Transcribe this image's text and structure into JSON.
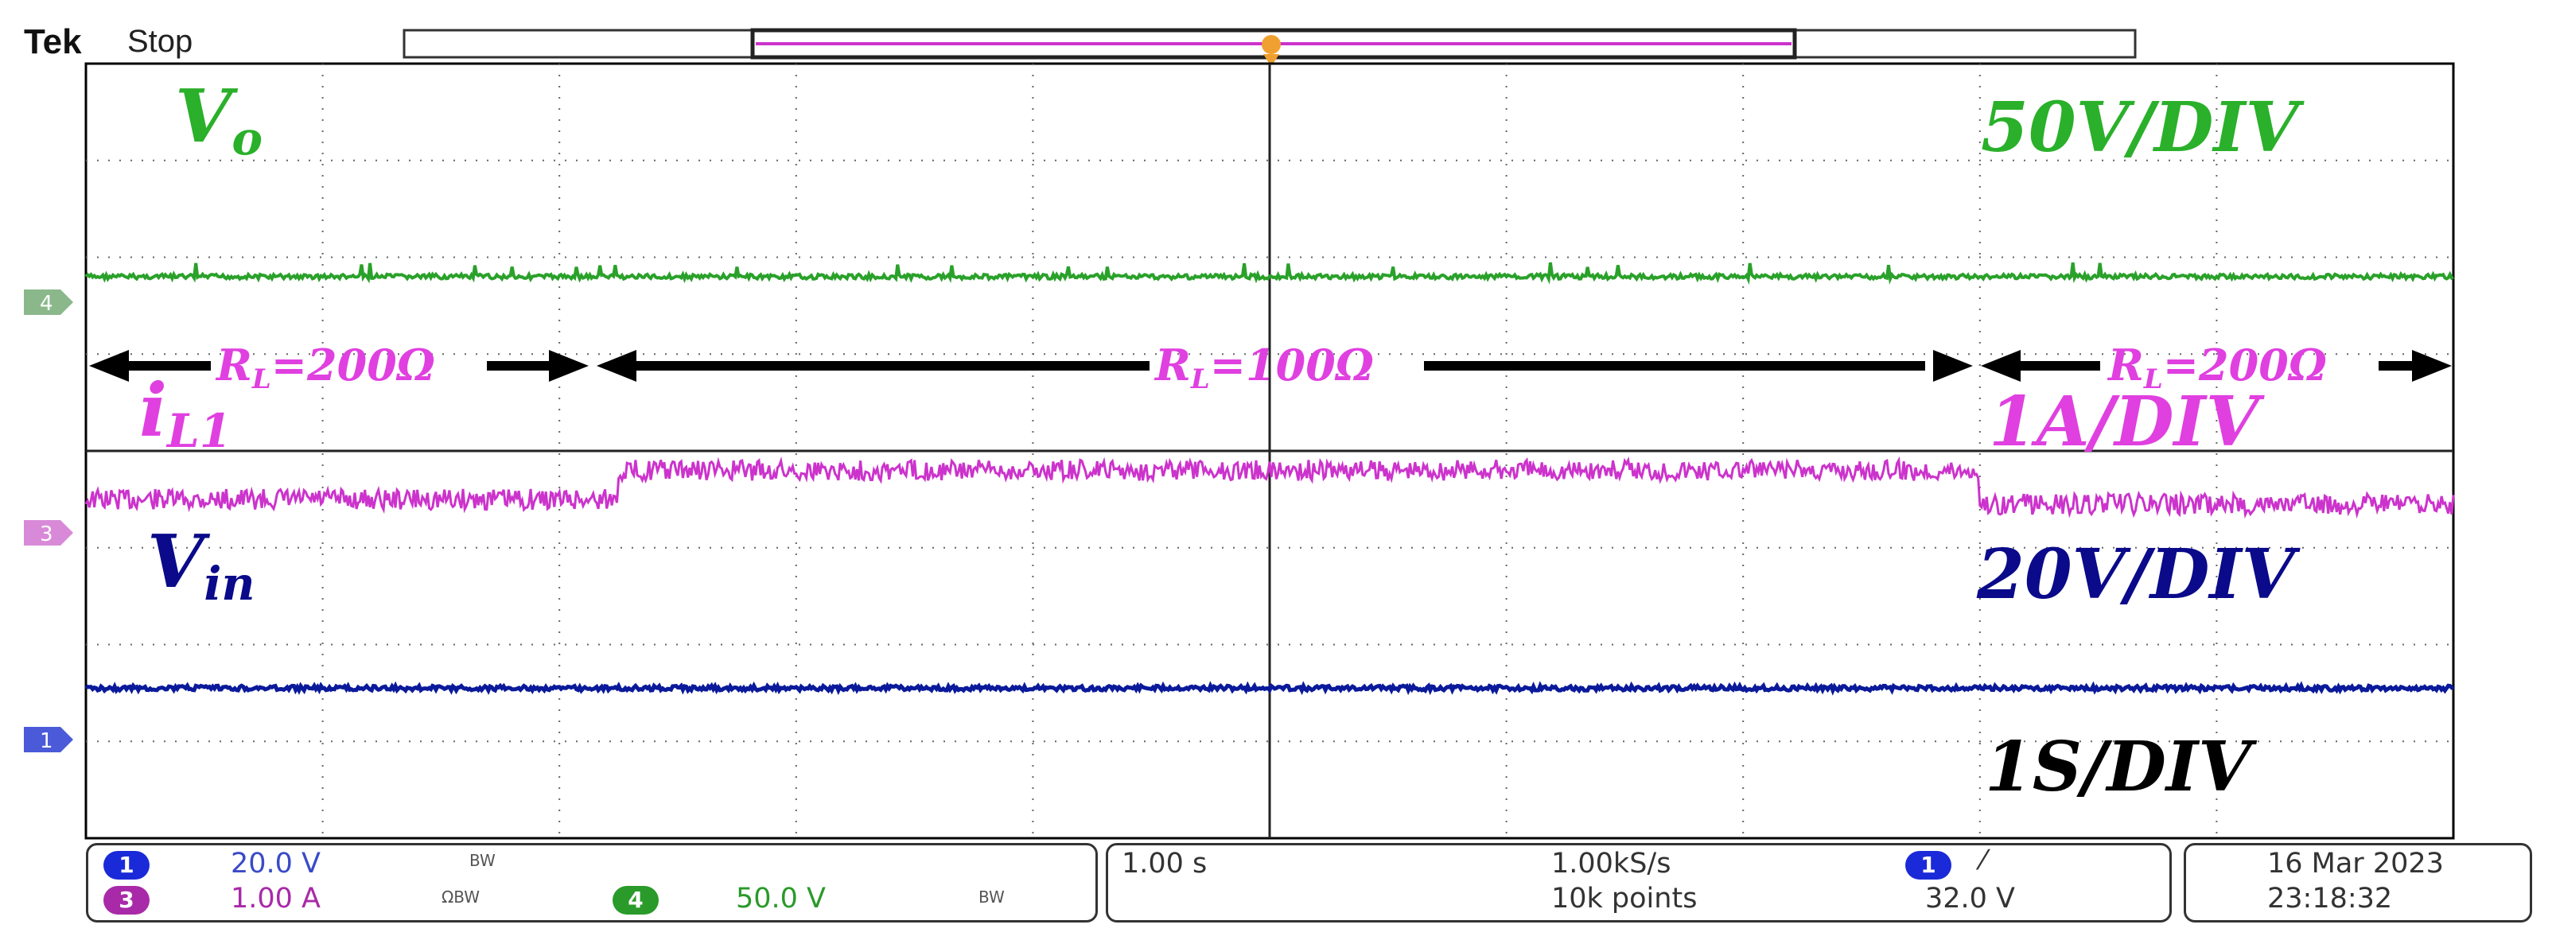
{
  "header": {
    "brand": "Tek",
    "status": "Stop"
  },
  "colors": {
    "vo": "#2aa12a",
    "il1": "#cc33cc",
    "vin": "#0a1a9a",
    "ref": "#1a1a9a",
    "text_vo": "#2ab02a",
    "text_il": "#e040e0",
    "text_vin": "#0a0a8a",
    "grid": "#000000"
  },
  "chart_data": {
    "type": "line",
    "xlim": [
      0,
      10
    ],
    "x_unit": "s",
    "grid": "on",
    "series": [
      {
        "name": "Vo",
        "level": 2.2,
        "steps": []
      },
      {
        "name": "iL1",
        "level": 4.5,
        "steps": [
          {
            "from": 0,
            "to": 2.25,
            "level": 4.5
          },
          {
            "from": 2.25,
            "to": 8.0,
            "level": 4.2
          },
          {
            "from": 8.0,
            "to": 10,
            "level": 4.55
          }
        ]
      },
      {
        "name": "Vin",
        "level": 6.45,
        "steps": []
      }
    ],
    "labels": {
      "vo": "V",
      "vo_sub": "o",
      "vo_scale": "50V/DIV",
      "il": "i",
      "il_sub": "L1",
      "il_scale": "1A/DIV",
      "vin": "V",
      "vin_sub": "in",
      "vin_scale": "20V/DIV",
      "time_scale": "1S/DIV",
      "rl_left": "R",
      "rl_left_sub": "L",
      "rl_left_val": "=200Ω",
      "rl_mid": "R",
      "rl_mid_sub": "L",
      "rl_mid_val": "=100Ω",
      "rl_right": "R",
      "rl_right_sub": "L",
      "rl_right_val": "=200Ω"
    },
    "channel_markers": [
      "4",
      "3",
      "1"
    ]
  },
  "readout": {
    "ch1_num": "1",
    "ch1_scale": "20.0 V",
    "ch1_bw": "BW",
    "ch3_num": "3",
    "ch3_scale": "1.00 A",
    "ch3_bw": "ΩBW",
    "ch4_num": "4",
    "ch4_scale": "50.0 V",
    "ch4_bw": "BW",
    "timebase": "1.00 s",
    "sample_rate": "1.00kS/s",
    "record": "10k points",
    "trig_ch": "1",
    "trig_level": "32.0 V",
    "date": "16 Mar  2023",
    "time": "23:18:32"
  }
}
